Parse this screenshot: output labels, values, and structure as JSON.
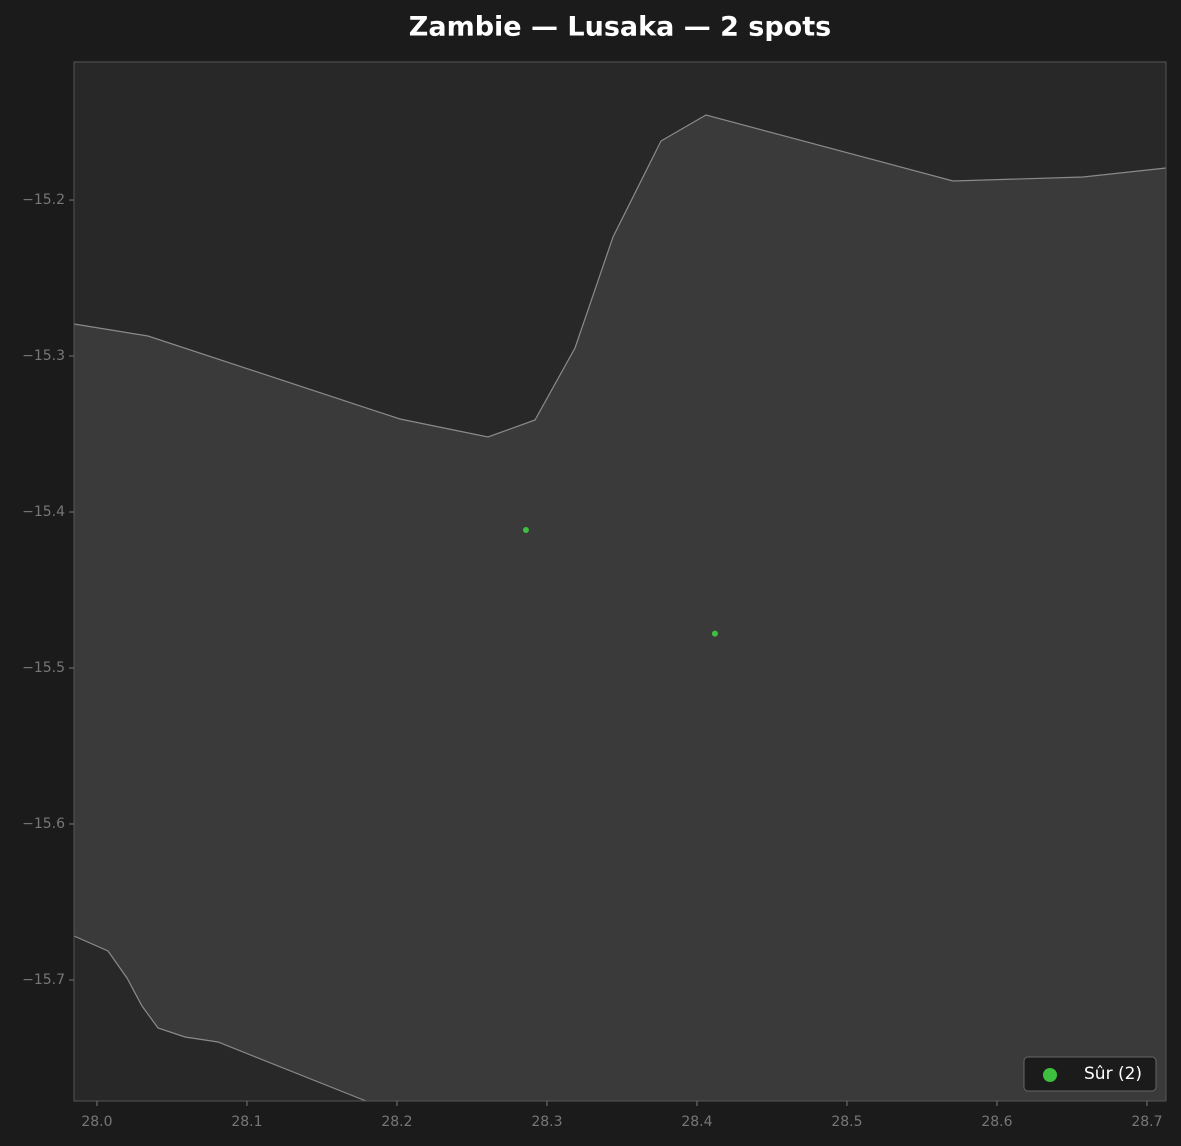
{
  "chart_data": {
    "type": "scatter",
    "title": "Zambie — Lusaka — 2 spots",
    "xlim": [
      27.9847,
      28.7127
    ],
    "ylim": [
      -15.7776,
      -15.1115
    ],
    "xticks": [
      {
        "value": 28.0,
        "label": "28.0"
      },
      28.1,
      28.2,
      28.3,
      28.4,
      28.5,
      28.6,
      28.7
    ],
    "yticks": [
      {
        "value": -15.2,
        "label": "−15.2"
      },
      {
        "value": -15.3,
        "label": "−15.3"
      },
      {
        "value": -15.4,
        "label": "−15.4"
      },
      {
        "value": -15.5,
        "label": "−15.5"
      },
      {
        "value": -15.6,
        "label": "−15.6"
      },
      {
        "value": -15.7,
        "label": "−15.7"
      }
    ],
    "series": [
      {
        "name": "Sûr (2)",
        "color": "#3fbf3f",
        "x": [
          28.286,
          28.412
        ],
        "values": [
          -15.4115,
          -15.478
        ]
      }
    ],
    "legend": "lower right"
  }
}
